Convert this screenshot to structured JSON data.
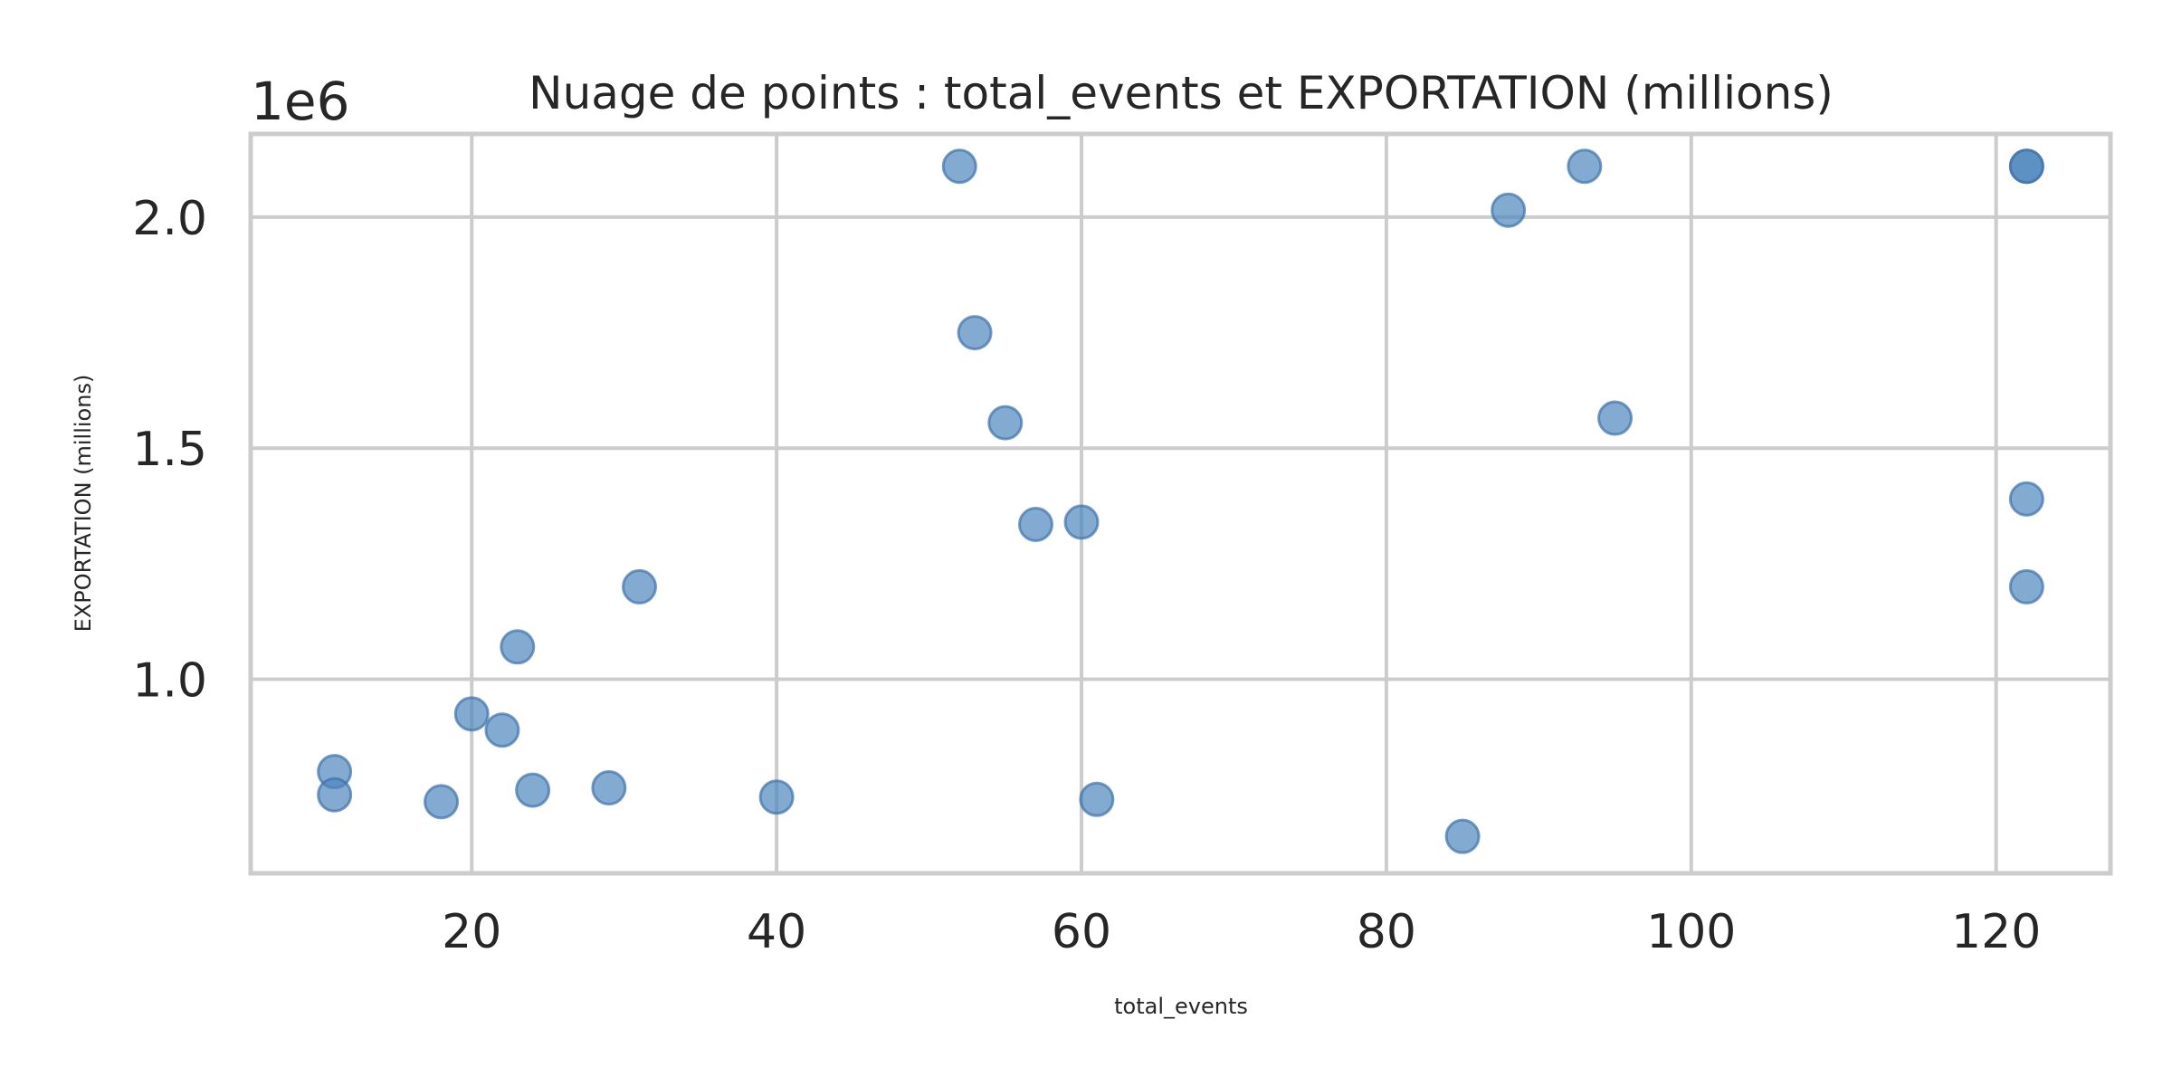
{
  "chart_data": {
    "type": "scatter",
    "title": "Nuage de points : total_events et EXPORTATION (millions)",
    "xlabel": "total_events",
    "ylabel": "EXPORTATION (millions)",
    "y_offset_label": "1e6",
    "xlim": [
      5.5,
      127.5
    ],
    "ylim": [
      580000,
      2180000
    ],
    "x_ticks": [
      20,
      40,
      60,
      80,
      100,
      120
    ],
    "x_tick_labels": [
      "20",
      "40",
      "60",
      "80",
      "100",
      "120"
    ],
    "y_ticks": [
      1000000,
      1500000,
      2000000
    ],
    "y_tick_labels": [
      "1.0",
      "1.5",
      "2.0"
    ],
    "grid": true,
    "point_color": "#4f86bd",
    "points": [
      {
        "x": 11,
        "y": 800000
      },
      {
        "x": 11,
        "y": 750000
      },
      {
        "x": 18,
        "y": 735000
      },
      {
        "x": 20,
        "y": 925000
      },
      {
        "x": 22,
        "y": 890000
      },
      {
        "x": 23,
        "y": 1070000
      },
      {
        "x": 24,
        "y": 760000
      },
      {
        "x": 29,
        "y": 765000
      },
      {
        "x": 31,
        "y": 1200000
      },
      {
        "x": 40,
        "y": 745000
      },
      {
        "x": 52,
        "y": 2110000
      },
      {
        "x": 53,
        "y": 1750000
      },
      {
        "x": 55,
        "y": 1555000
      },
      {
        "x": 57,
        "y": 1335000
      },
      {
        "x": 60,
        "y": 1340000
      },
      {
        "x": 61,
        "y": 740000
      },
      {
        "x": 85,
        "y": 660000
      },
      {
        "x": 88,
        "y": 2015000
      },
      {
        "x": 93,
        "y": 2110000
      },
      {
        "x": 95,
        "y": 1565000
      },
      {
        "x": 122,
        "y": 2110000
      },
      {
        "x": 122,
        "y": 2110000
      },
      {
        "x": 122,
        "y": 1390000
      },
      {
        "x": 122,
        "y": 1200000
      }
    ]
  }
}
